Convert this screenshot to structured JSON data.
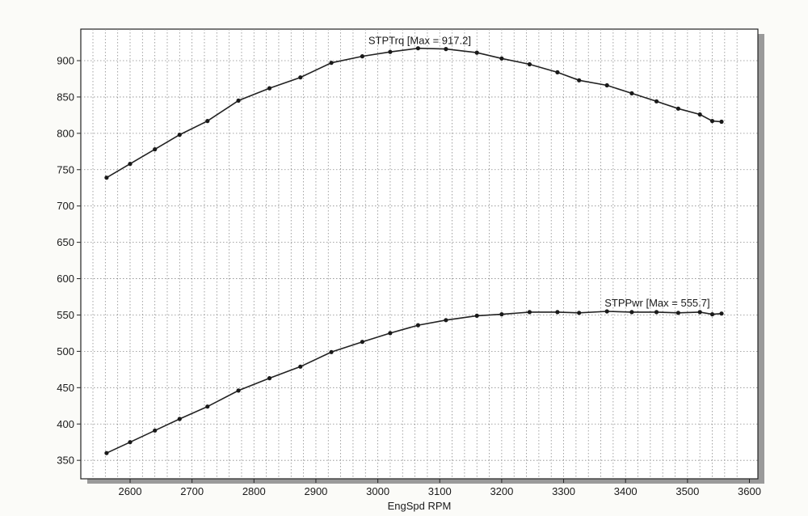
{
  "chart_data": {
    "type": "line",
    "xlabel": "EngSpd  RPM",
    "ylabel": "",
    "xlim": [
      2500,
      3600
    ],
    "ylim": [
      330,
      940
    ],
    "x_ticks": [
      2600,
      2700,
      2800,
      2900,
      3000,
      3100,
      3200,
      3300,
      3400,
      3500,
      3600
    ],
    "y_ticks": [
      350,
      400,
      450,
      500,
      550,
      600,
      650,
      700,
      750,
      800,
      850,
      900
    ],
    "grid": true,
    "series": [
      {
        "name": "STPTrq",
        "label": "STPTrq [Max = 917.2]",
        "x": [
          2562,
          2600,
          2640,
          2680,
          2725,
          2775,
          2825,
          2875,
          2925,
          2975,
          3020,
          3065,
          3110,
          3160,
          3200,
          3245,
          3290,
          3325,
          3370,
          3410,
          3450,
          3485,
          3520,
          3540,
          3555
        ],
        "y": [
          739,
          758,
          778,
          798,
          817,
          845,
          862,
          877,
          897,
          906,
          912,
          917,
          916,
          911,
          903,
          895,
          884,
          873,
          866,
          855,
          844,
          834,
          826,
          817,
          816
        ]
      },
      {
        "name": "STPPwr",
        "label": "STPPwr [Max = 555.7]",
        "x": [
          2562,
          2600,
          2640,
          2680,
          2725,
          2775,
          2825,
          2875,
          2925,
          2975,
          3020,
          3065,
          3110,
          3160,
          3200,
          3245,
          3290,
          3325,
          3370,
          3410,
          3450,
          3485,
          3520,
          3540,
          3555
        ],
        "y": [
          360,
          375,
          391,
          407,
          424,
          446,
          463,
          479,
          499,
          513,
          525,
          536,
          543,
          549,
          551,
          554,
          554,
          553,
          555,
          554,
          554,
          553,
          554,
          551,
          552
        ]
      }
    ]
  }
}
